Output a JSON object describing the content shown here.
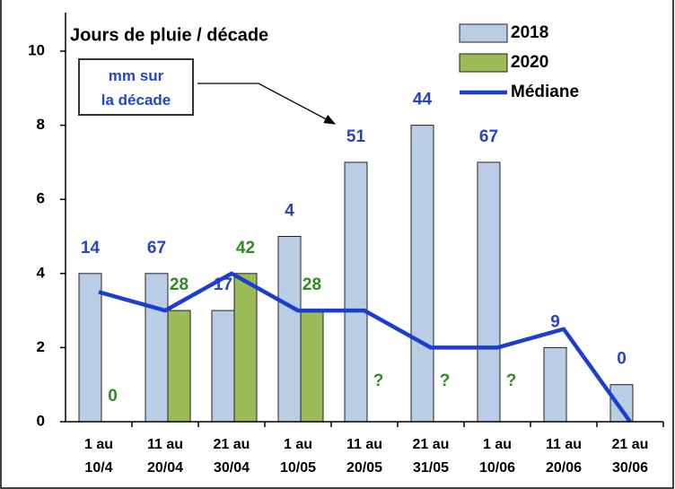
{
  "chart_data": {
    "type": "bar",
    "title": "Jours de pluie / décade",
    "annotation": "mm sur\nla décade",
    "categories": [
      "1 au\n10/4",
      "11 au\n20/04",
      "21 au\n30/04",
      "1 au\n10/05",
      "11 au\n20/05",
      "21 au\n31/05",
      "1 au\n10/06",
      "11 au\n20/06",
      "21 au\n30/06"
    ],
    "series": [
      {
        "name": "2018",
        "color": "#b9cde5",
        "values": [
          4,
          4,
          3,
          5,
          7,
          8,
          7,
          2,
          1
        ],
        "mm_labels": [
          14,
          67,
          17,
          4,
          51,
          44,
          67,
          9,
          0
        ],
        "label_color": "#2445c8"
      },
      {
        "name": "2020",
        "color": "#9bbb59",
        "values": [
          0,
          3,
          4,
          3,
          null,
          null,
          null,
          null,
          null
        ],
        "mm_labels": [
          "0",
          "28",
          "42",
          "28",
          "?",
          "?",
          "?",
          null,
          null
        ],
        "label_color": "#2e8b22"
      },
      {
        "name": "Médiane",
        "type": "line",
        "color": "#1a3fd0",
        "values": [
          3.5,
          3,
          4,
          3,
          3,
          2,
          2,
          2.5,
          0
        ]
      }
    ],
    "ylim": [
      0,
      10
    ],
    "yticks": [
      0,
      2,
      4,
      6,
      8,
      10
    ],
    "grid": false
  }
}
